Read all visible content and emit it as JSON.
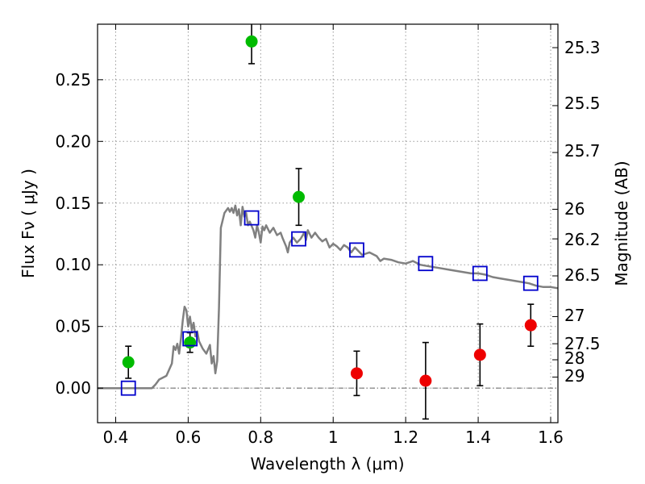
{
  "chart_data": {
    "type": "scatter",
    "xlabel": "Wavelength  λ (μm)",
    "ylabel": "Flux  Fν  ( μJy )",
    "y2label": "Magnitude (AB)",
    "xlim": [
      0.35,
      1.62
    ],
    "ylim": [
      -0.028,
      0.295
    ],
    "x_ticks": [
      0.4,
      0.6,
      0.8,
      1.0,
      1.2,
      1.4,
      1.6
    ],
    "x_tick_labels": [
      "0.4",
      "0.6",
      "0.8",
      "1",
      "1.2",
      "1.4",
      "1.6"
    ],
    "y_ticks": [
      0.0,
      0.05,
      0.1,
      0.15,
      0.2,
      0.25
    ],
    "y_tick_labels": [
      "0.00",
      "0.05",
      "0.10",
      "0.15",
      "0.20",
      "0.25"
    ],
    "magnitude_ticks": [
      {
        "label": "25.3",
        "flux": 0.276
      },
      {
        "label": "25.5",
        "flux": 0.229
      },
      {
        "label": "25.7",
        "flux": 0.191
      },
      {
        "label": "26",
        "flux": 0.145
      },
      {
        "label": "26.2",
        "flux": 0.121
      },
      {
        "label": "26.5",
        "flux": 0.091
      },
      {
        "label": "27",
        "flux": 0.058
      },
      {
        "label": "27.5",
        "flux": 0.036
      },
      {
        "label": "28",
        "flux": 0.023
      },
      {
        "label": "29",
        "flux": 0.009
      }
    ],
    "grid": true,
    "series": [
      {
        "marker": "circle",
        "color": "#00bb00",
        "points": [
          {
            "x": 0.435,
            "y": 0.021,
            "err": 0.013
          },
          {
            "x": 0.605,
            "y": 0.037,
            "err": 0.008
          },
          {
            "x": 0.775,
            "y": 0.281,
            "err": 0.018
          },
          {
            "x": 0.905,
            "y": 0.155,
            "err": 0.023
          }
        ]
      },
      {
        "marker": "circle",
        "color": "#ee0000",
        "points": [
          {
            "x": 1.065,
            "y": 0.012,
            "err": 0.018
          },
          {
            "x": 1.255,
            "y": 0.006,
            "err": 0.031
          },
          {
            "x": 1.405,
            "y": 0.027,
            "err": 0.025
          },
          {
            "x": 1.545,
            "y": 0.051,
            "err": 0.017
          }
        ]
      },
      {
        "marker": "square",
        "color": "#0000cc",
        "points": [
          {
            "x": 0.435,
            "y": 0.0
          },
          {
            "x": 0.605,
            "y": 0.04
          },
          {
            "x": 0.775,
            "y": 0.138
          },
          {
            "x": 0.905,
            "y": 0.121
          },
          {
            "x": 1.065,
            "y": 0.112
          },
          {
            "x": 1.255,
            "y": 0.101
          },
          {
            "x": 1.405,
            "y": 0.093
          },
          {
            "x": 1.545,
            "y": 0.085
          }
        ]
      }
    ],
    "model_spectrum": {
      "color": "#808080",
      "points": [
        [
          0.35,
          0.0
        ],
        [
          0.5,
          0.0
        ],
        [
          0.51,
          0.003
        ],
        [
          0.52,
          0.007
        ],
        [
          0.54,
          0.01
        ],
        [
          0.555,
          0.02
        ],
        [
          0.56,
          0.034
        ],
        [
          0.565,
          0.031
        ],
        [
          0.57,
          0.036
        ],
        [
          0.575,
          0.028
        ],
        [
          0.58,
          0.04
        ],
        [
          0.585,
          0.055
        ],
        [
          0.59,
          0.066
        ],
        [
          0.595,
          0.063
        ],
        [
          0.6,
          0.05
        ],
        [
          0.605,
          0.058
        ],
        [
          0.61,
          0.047
        ],
        [
          0.615,
          0.053
        ],
        [
          0.62,
          0.042
        ],
        [
          0.625,
          0.046
        ],
        [
          0.63,
          0.038
        ],
        [
          0.64,
          0.032
        ],
        [
          0.65,
          0.028
        ],
        [
          0.66,
          0.035
        ],
        [
          0.665,
          0.02
        ],
        [
          0.67,
          0.026
        ],
        [
          0.675,
          0.012
        ],
        [
          0.68,
          0.022
        ],
        [
          0.685,
          0.065
        ],
        [
          0.69,
          0.13
        ],
        [
          0.7,
          0.142
        ],
        [
          0.71,
          0.146
        ],
        [
          0.715,
          0.143
        ],
        [
          0.72,
          0.146
        ],
        [
          0.725,
          0.142
        ],
        [
          0.73,
          0.148
        ],
        [
          0.735,
          0.14
        ],
        [
          0.74,
          0.145
        ],
        [
          0.745,
          0.132
        ],
        [
          0.75,
          0.147
        ],
        [
          0.755,
          0.139
        ],
        [
          0.76,
          0.142
        ],
        [
          0.765,
          0.132
        ],
        [
          0.77,
          0.135
        ],
        [
          0.78,
          0.128
        ],
        [
          0.785,
          0.122
        ],
        [
          0.79,
          0.132
        ],
        [
          0.795,
          0.126
        ],
        [
          0.8,
          0.118
        ],
        [
          0.805,
          0.131
        ],
        [
          0.81,
          0.128
        ],
        [
          0.815,
          0.132
        ],
        [
          0.825,
          0.126
        ],
        [
          0.835,
          0.13
        ],
        [
          0.845,
          0.124
        ],
        [
          0.855,
          0.126
        ],
        [
          0.86,
          0.122
        ],
        [
          0.87,
          0.115
        ],
        [
          0.875,
          0.11
        ],
        [
          0.88,
          0.118
        ],
        [
          0.89,
          0.122
        ],
        [
          0.9,
          0.118
        ],
        [
          0.91,
          0.121
        ],
        [
          0.92,
          0.126
        ],
        [
          0.925,
          0.12
        ],
        [
          0.93,
          0.128
        ],
        [
          0.94,
          0.122
        ],
        [
          0.95,
          0.126
        ],
        [
          0.96,
          0.122
        ],
        [
          0.97,
          0.119
        ],
        [
          0.98,
          0.121
        ],
        [
          0.99,
          0.114
        ],
        [
          1.0,
          0.117
        ],
        [
          1.01,
          0.115
        ],
        [
          1.02,
          0.112
        ],
        [
          1.03,
          0.116
        ],
        [
          1.04,
          0.114
        ],
        [
          1.05,
          0.11
        ],
        [
          1.06,
          0.114
        ],
        [
          1.08,
          0.108
        ],
        [
          1.1,
          0.11
        ],
        [
          1.12,
          0.107
        ],
        [
          1.13,
          0.103
        ],
        [
          1.14,
          0.105
        ],
        [
          1.16,
          0.104
        ],
        [
          1.18,
          0.102
        ],
        [
          1.2,
          0.101
        ],
        [
          1.22,
          0.103
        ],
        [
          1.24,
          0.1
        ],
        [
          1.26,
          0.099
        ],
        [
          1.28,
          0.098
        ],
        [
          1.3,
          0.097
        ],
        [
          1.32,
          0.096
        ],
        [
          1.34,
          0.095
        ],
        [
          1.36,
          0.094
        ],
        [
          1.38,
          0.093
        ],
        [
          1.4,
          0.093
        ],
        [
          1.42,
          0.092
        ],
        [
          1.44,
          0.09
        ],
        [
          1.46,
          0.089
        ],
        [
          1.48,
          0.088
        ],
        [
          1.5,
          0.087
        ],
        [
          1.52,
          0.086
        ],
        [
          1.54,
          0.085
        ],
        [
          1.56,
          0.083
        ],
        [
          1.58,
          0.082
        ],
        [
          1.6,
          0.082
        ],
        [
          1.62,
          0.081
        ]
      ]
    }
  }
}
